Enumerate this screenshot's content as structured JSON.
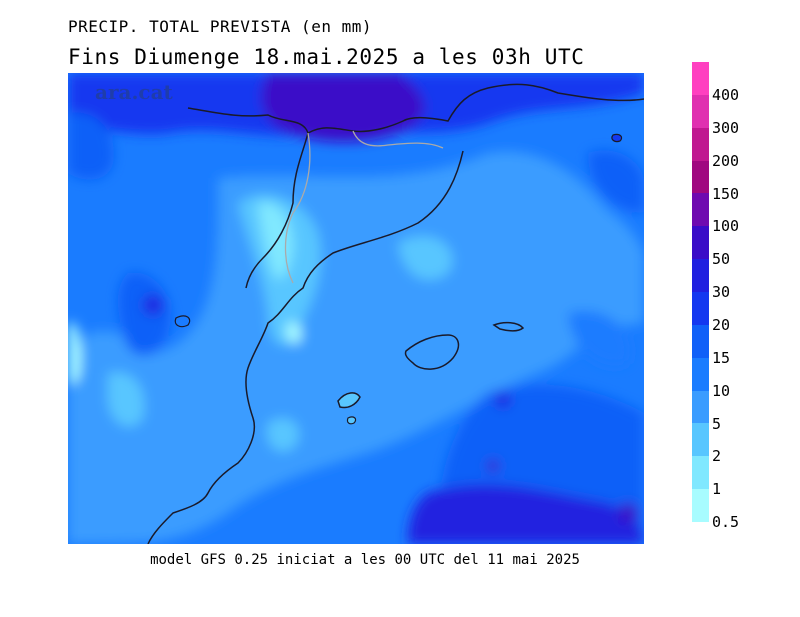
{
  "header": {
    "title_line1": "PRECIP. TOTAL PREVISTA (en mm)",
    "title_line2": "Fins Diumenge 18.mai.2025 a les 03h UTC"
  },
  "watermark": "ara.cat",
  "footer": "model GFS 0.25 iniciat a les 00 UTC del 11 mai 2025",
  "colorbar": {
    "labels": [
      "400",
      "300",
      "200",
      "150",
      "100",
      "50",
      "30",
      "20",
      "15",
      "10",
      "5",
      "2",
      "1",
      "0.5"
    ],
    "colors": [
      "#ff40c0",
      "#e030b0",
      "#c01890",
      "#a00880",
      "#6f0ab0",
      "#3a0cc8",
      "#2020e0",
      "#1438f0",
      "#1060f8",
      "#1a7cff",
      "#3a9cff",
      "#58c6ff",
      "#80e8ff",
      "#a8fcff"
    ]
  },
  "map": {
    "region": "Catalunya i Mediterrània occidental",
    "land_outline_color": "#1a1a2a",
    "border_color": "#aaaaaa"
  }
}
